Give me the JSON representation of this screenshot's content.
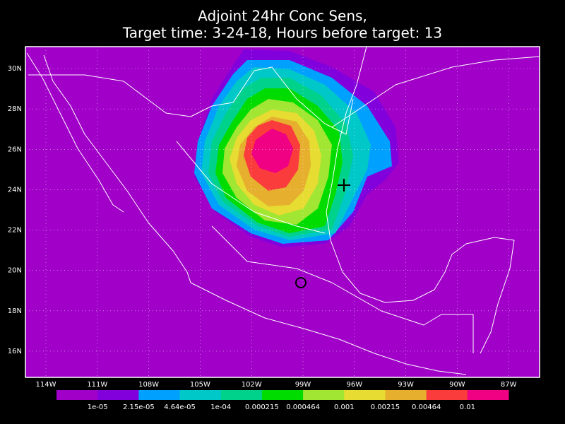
{
  "title": {
    "line1": "Adjoint 24hr Conc Sens,",
    "line2": "Target time: 3-24-18, Hours before target: 13"
  },
  "lat_labels": [
    "30N",
    "28N",
    "26N",
    "24N",
    "22N",
    "20N",
    "18N",
    "16N"
  ],
  "lon_labels": [
    "114W",
    "111W",
    "108W",
    "105W",
    "102W",
    "99W",
    "96W",
    "93W",
    "90W",
    "87W"
  ],
  "colorbar": {
    "colors": [
      "#a000c8",
      "#8200dc",
      "#00a0ff",
      "#00c8c8",
      "#00d28c",
      "#00dc00",
      "#a0e632",
      "#e6dc32",
      "#e6af2d",
      "#fa3c3c",
      "#f00082"
    ],
    "labels": [
      "1e-05",
      "2.15e-05",
      "4.64e-05",
      "1e-04",
      "0.000215",
      "0.000464",
      "0.001",
      "0.00215",
      "0.00464",
      "0.01"
    ]
  }
}
